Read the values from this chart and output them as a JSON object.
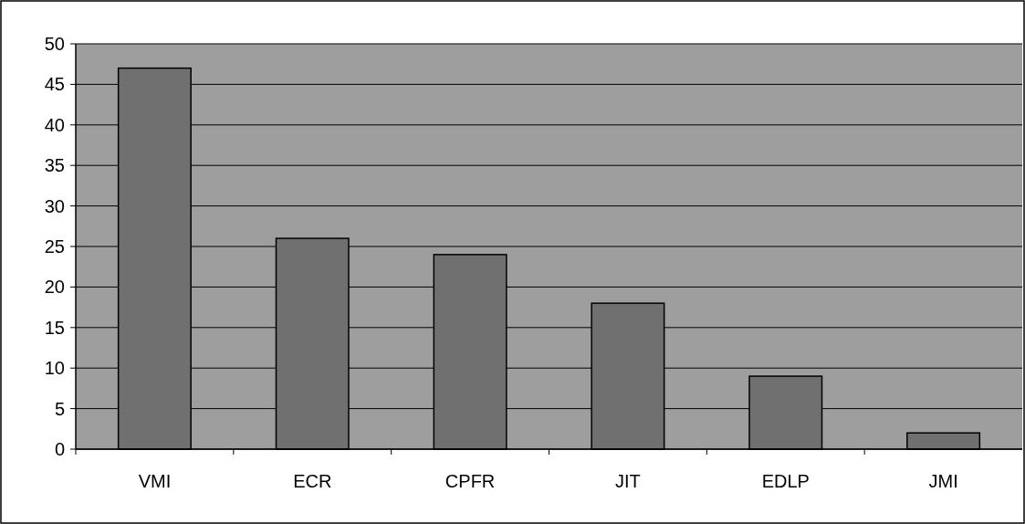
{
  "chart_data": {
    "type": "bar",
    "categories": [
      "VMI",
      "ECR",
      "CPFR",
      "JIT",
      "EDLP",
      "JMI"
    ],
    "values": [
      47,
      26,
      24,
      18,
      9,
      2
    ],
    "color": "#707070",
    "ylim": [
      0,
      50
    ],
    "yticks": [
      0,
      5,
      10,
      15,
      20,
      25,
      30,
      35,
      40,
      45,
      50
    ],
    "grid": "y"
  }
}
